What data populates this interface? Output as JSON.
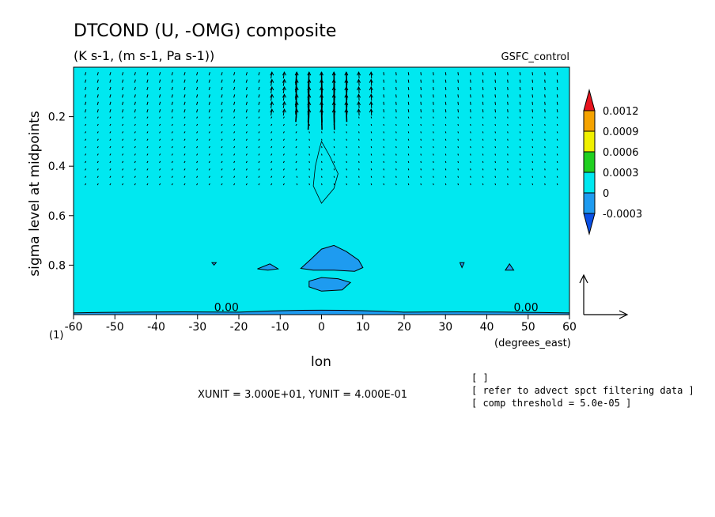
{
  "chart_data": {
    "type": "contour",
    "title": "DTCOND (U, -OMG) composite",
    "subtitle": "(K s-1, (m s-1, Pa s-1))",
    "dataset": "GSFC_control",
    "xlabel": "lon",
    "x_unit": "(degrees_east)",
    "ylabel": "sigma level at midpoints",
    "corner_label": "(1)",
    "xlim": [
      -60,
      60
    ],
    "ylim": [
      0.0,
      1.0
    ],
    "y_inverted": true,
    "x_ticks": [
      -60,
      -50,
      -40,
      -30,
      -20,
      -10,
      0,
      10,
      20,
      30,
      40,
      50,
      60
    ],
    "x_tick_labels": [
      "-60",
      "-50",
      "-40",
      "-30",
      "-20",
      "-10",
      "0",
      "10",
      "20",
      "30",
      "40",
      "50",
      "60"
    ],
    "y_ticks": [
      0.2,
      0.4,
      0.6,
      0.8
    ],
    "y_tick_labels": [
      "0.2",
      "0.4",
      "0.6",
      "0.8"
    ],
    "colorbar": {
      "levels": [
        "0.0012",
        "0.0009",
        "0.0006",
        "0.0003",
        "0",
        "-0.0003"
      ],
      "colors": [
        "#e8141e",
        "#f5a300",
        "#f0f000",
        "#20d020",
        "#00e8f0",
        "#1e9bf0",
        "#0a50e6"
      ]
    },
    "background_color": "#00e8f0",
    "negative_color": "#1e9bf0",
    "contour_labels": [
      {
        "text": "0.00",
        "lon": -23,
        "sigma": 0.985
      },
      {
        "text": "0.00",
        "lon": 49.5,
        "sigma": 0.985
      }
    ],
    "negative_regions": [
      {
        "name": "center-upper",
        "points": [
          [
            -5,
            0.813
          ],
          [
            -2.5,
            0.775
          ],
          [
            0,
            0.735
          ],
          [
            3,
            0.72
          ],
          [
            6,
            0.745
          ],
          [
            9,
            0.78
          ],
          [
            10,
            0.81
          ],
          [
            8,
            0.825
          ],
          [
            3,
            0.82
          ],
          [
            -2,
            0.82
          ]
        ]
      },
      {
        "name": "center-lower",
        "points": [
          [
            -3,
            0.865
          ],
          [
            0,
            0.85
          ],
          [
            4,
            0.855
          ],
          [
            7,
            0.87
          ],
          [
            5,
            0.9
          ],
          [
            0,
            0.905
          ],
          [
            -3,
            0.888
          ]
        ]
      },
      {
        "name": "west-small",
        "points": [
          [
            -15.5,
            0.815
          ],
          [
            -12.5,
            0.795
          ],
          [
            -10.5,
            0.815
          ],
          [
            -13,
            0.82
          ]
        ]
      },
      {
        "name": "west-tiny",
        "points": [
          [
            -26.5,
            0.79
          ],
          [
            -25.5,
            0.79
          ],
          [
            -26,
            0.8
          ]
        ]
      },
      {
        "name": "east-tiny",
        "points": [
          [
            33.5,
            0.79
          ],
          [
            34.5,
            0.79
          ],
          [
            34,
            0.81
          ]
        ]
      },
      {
        "name": "east-small",
        "points": [
          [
            44.5,
            0.82
          ],
          [
            45.5,
            0.795
          ],
          [
            46.5,
            0.82
          ]
        ]
      }
    ],
    "bottom_band": {
      "sigma_top": 0.99
    },
    "positive_contour": {
      "points": [
        [
          0,
          0.3
        ],
        [
          2,
          0.36
        ],
        [
          4,
          0.43
        ],
        [
          3,
          0.49
        ],
        [
          0,
          0.55
        ],
        [
          -2,
          0.48
        ],
        [
          -1.5,
          0.4
        ],
        [
          -0.5,
          0.33
        ]
      ]
    },
    "vector_reference": {
      "xunit": 30.0,
      "yunit": 0.4
    }
  },
  "footer": {
    "units_text": "XUNIT = 3.000E+01, YUNIT = 4.000E-01",
    "note_1": "[  ]",
    "note_2": "[ refer to advect spct filtering data ]",
    "note_3": "[ comp threshold = 5.0e-05 ]"
  }
}
